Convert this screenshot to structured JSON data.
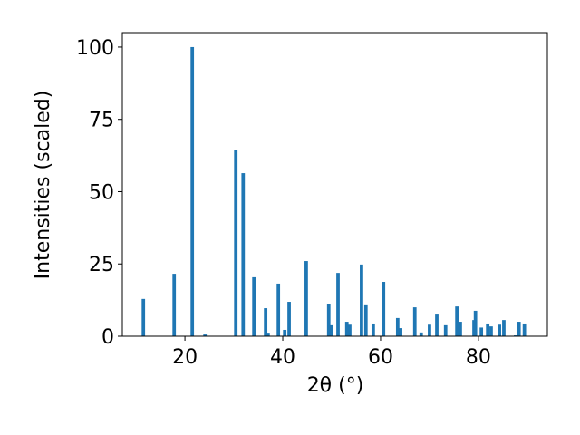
{
  "chart_data": {
    "type": "bar",
    "xlabel": "2θ (°)",
    "ylabel": "Intensities (scaled)",
    "x": [
      11.5,
      17.8,
      21.5,
      24.1,
      30.4,
      31.9,
      34.1,
      36.5,
      37.0,
      39.1,
      40.4,
      41.3,
      44.8,
      49.4,
      50.0,
      51.3,
      53.1,
      53.7,
      56.1,
      57.0,
      58.5,
      60.6,
      63.5,
      64.1,
      67.0,
      68.3,
      70.0,
      71.5,
      73.3,
      75.6,
      76.3,
      79.1,
      79.4,
      80.6,
      81.9,
      82.6,
      84.3,
      85.2,
      87.6,
      88.3,
      89.4
    ],
    "values": [
      12.9,
      21.6,
      100,
      0.6,
      64.3,
      56.4,
      20.4,
      9.7,
      0.9,
      18.2,
      2.2,
      11.9,
      26,
      11,
      3.8,
      21.9,
      5,
      4,
      24.8,
      10.7,
      4.4,
      18.8,
      6.3,
      2.8,
      10,
      1.3,
      4,
      7.5,
      3.8,
      10.3,
      5,
      5.6,
      8.8,
      3,
      4.4,
      3.4,
      4,
      5.6,
      0.3,
      5,
      4.4
    ],
    "bar_width": 0.7,
    "color": "#1f77b4",
    "xlim": [
      7.2,
      94.1
    ],
    "xticks": [
      20,
      40,
      60,
      80
    ],
    "ylim": [
      0,
      105
    ],
    "yticks": [
      0,
      25,
      50,
      75,
      100
    ]
  }
}
